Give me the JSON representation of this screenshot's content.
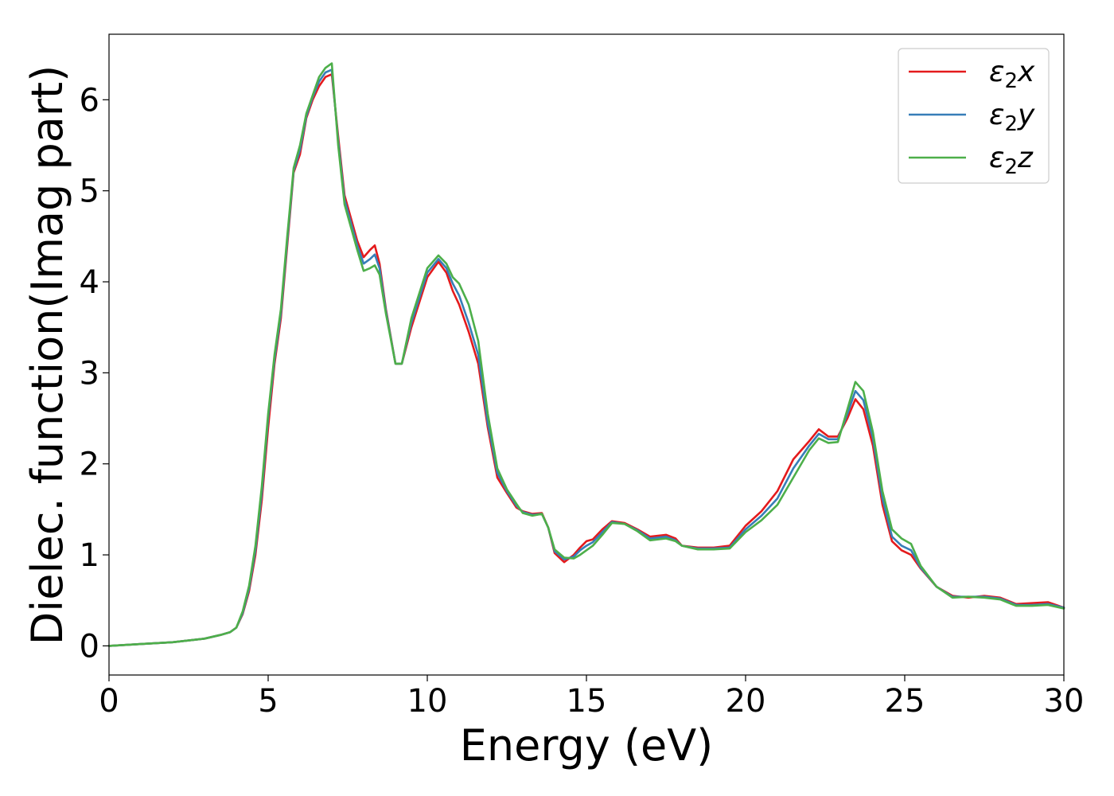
{
  "chart_data": {
    "type": "line",
    "xlabel": "Energy (eV)",
    "ylabel": "Dielec. function(Imag part)",
    "xlim": [
      0,
      30
    ],
    "ylim": [
      -0.32,
      6.72
    ],
    "xticks": [
      0,
      5,
      10,
      15,
      20,
      25,
      30
    ],
    "yticks": [
      0,
      1,
      2,
      3,
      4,
      5,
      6
    ],
    "grid": false,
    "legend_position": "top-right",
    "series": [
      {
        "name": "ε2x",
        "legend_base": "ε",
        "legend_sub": "2",
        "legend_suffix": "x",
        "color": "#e41a1c",
        "x": [
          0,
          1,
          2,
          3,
          3.5,
          3.8,
          4,
          4.2,
          4.4,
          4.6,
          4.8,
          5,
          5.2,
          5.4,
          5.6,
          5.8,
          6,
          6.2,
          6.4,
          6.6,
          6.8,
          7,
          7.2,
          7.4,
          7.6,
          7.8,
          8,
          8.2,
          8.35,
          8.5,
          8.7,
          9,
          9.2,
          9.5,
          10,
          10.35,
          10.6,
          10.8,
          11,
          11.3,
          11.6,
          11.9,
          12.2,
          12.5,
          12.8,
          13,
          13.3,
          13.6,
          13.8,
          14,
          14.3,
          14.6,
          14.8,
          15,
          15.2,
          15.5,
          15.8,
          16.2,
          16.6,
          17,
          17.5,
          17.8,
          18,
          18.5,
          19,
          19.5,
          20,
          20.5,
          21,
          21.5,
          22,
          22.3,
          22.6,
          22.9,
          23.2,
          23.45,
          23.7,
          24,
          24.3,
          24.6,
          24.9,
          25.2,
          25.5,
          26,
          26.5,
          27,
          27.5,
          28,
          28.5,
          29,
          29.5,
          30
        ],
        "y": [
          0,
          0.02,
          0.04,
          0.08,
          0.12,
          0.15,
          0.2,
          0.35,
          0.6,
          1.0,
          1.6,
          2.4,
          3.1,
          3.6,
          4.4,
          5.2,
          5.4,
          5.8,
          6.0,
          6.15,
          6.25,
          6.28,
          5.6,
          4.95,
          4.7,
          4.45,
          4.27,
          4.35,
          4.4,
          4.2,
          3.7,
          3.1,
          3.1,
          3.5,
          4.05,
          4.22,
          4.1,
          3.9,
          3.75,
          3.45,
          3.1,
          2.4,
          1.85,
          1.68,
          1.52,
          1.48,
          1.45,
          1.46,
          1.3,
          1.02,
          0.92,
          1.0,
          1.08,
          1.15,
          1.17,
          1.28,
          1.37,
          1.35,
          1.28,
          1.2,
          1.22,
          1.18,
          1.1,
          1.08,
          1.08,
          1.1,
          1.32,
          1.48,
          1.7,
          2.05,
          2.25,
          2.38,
          2.3,
          2.3,
          2.5,
          2.71,
          2.6,
          2.2,
          1.55,
          1.15,
          1.05,
          1.0,
          0.85,
          0.65,
          0.55,
          0.53,
          0.55,
          0.53,
          0.46,
          0.47,
          0.48,
          0.42
        ]
      },
      {
        "name": "ε2y",
        "legend_base": "ε",
        "legend_sub": "2",
        "legend_suffix": "y",
        "color": "#377eb8",
        "x": [
          0,
          1,
          2,
          3,
          3.5,
          3.8,
          4,
          4.2,
          4.4,
          4.6,
          4.8,
          5,
          5.2,
          5.4,
          5.6,
          5.8,
          6,
          6.2,
          6.4,
          6.6,
          6.8,
          7,
          7.2,
          7.4,
          7.6,
          7.8,
          8,
          8.2,
          8.35,
          8.5,
          8.7,
          9,
          9.2,
          9.5,
          10,
          10.35,
          10.6,
          10.8,
          11,
          11.3,
          11.6,
          11.9,
          12.2,
          12.5,
          12.8,
          13,
          13.3,
          13.6,
          13.8,
          14,
          14.3,
          14.6,
          14.8,
          15,
          15.2,
          15.5,
          15.8,
          16.2,
          16.6,
          17,
          17.5,
          17.8,
          18,
          18.5,
          19,
          19.5,
          20,
          20.5,
          21,
          21.5,
          22,
          22.3,
          22.6,
          22.9,
          23.2,
          23.45,
          23.7,
          24,
          24.3,
          24.6,
          24.9,
          25.2,
          25.5,
          26,
          26.5,
          27,
          27.5,
          28,
          28.5,
          29,
          29.5,
          30
        ],
        "y": [
          0,
          0.02,
          0.04,
          0.08,
          0.12,
          0.15,
          0.2,
          0.36,
          0.63,
          1.05,
          1.68,
          2.5,
          3.15,
          3.65,
          4.45,
          5.22,
          5.45,
          5.82,
          6.03,
          6.2,
          6.3,
          6.33,
          5.55,
          4.9,
          4.65,
          4.4,
          4.2,
          4.25,
          4.3,
          4.15,
          3.68,
          3.1,
          3.1,
          3.55,
          4.1,
          4.25,
          4.15,
          3.98,
          3.85,
          3.55,
          3.2,
          2.45,
          1.9,
          1.7,
          1.54,
          1.47,
          1.44,
          1.45,
          1.3,
          1.04,
          0.95,
          0.98,
          1.05,
          1.1,
          1.14,
          1.25,
          1.36,
          1.34,
          1.27,
          1.18,
          1.2,
          1.16,
          1.1,
          1.07,
          1.07,
          1.08,
          1.28,
          1.43,
          1.62,
          1.95,
          2.2,
          2.33,
          2.27,
          2.27,
          2.55,
          2.8,
          2.7,
          2.28,
          1.62,
          1.2,
          1.1,
          1.05,
          0.86,
          0.65,
          0.54,
          0.54,
          0.54,
          0.52,
          0.45,
          0.45,
          0.46,
          0.42
        ]
      },
      {
        "name": "ε2z",
        "legend_base": "ε",
        "legend_sub": "2",
        "legend_suffix": "z",
        "color": "#4daf4a",
        "x": [
          0,
          1,
          2,
          3,
          3.5,
          3.8,
          4,
          4.2,
          4.4,
          4.6,
          4.8,
          5,
          5.2,
          5.4,
          5.6,
          5.8,
          6,
          6.2,
          6.4,
          6.6,
          6.8,
          7,
          7.2,
          7.4,
          7.6,
          7.8,
          8,
          8.2,
          8.35,
          8.5,
          8.7,
          9,
          9.2,
          9.5,
          10,
          10.35,
          10.6,
          10.8,
          11,
          11.3,
          11.6,
          11.9,
          12.2,
          12.5,
          12.8,
          13,
          13.3,
          13.6,
          13.8,
          14,
          14.3,
          14.6,
          14.8,
          15,
          15.2,
          15.5,
          15.8,
          16.2,
          16.6,
          17,
          17.5,
          17.8,
          18,
          18.5,
          19,
          19.5,
          20,
          20.5,
          21,
          21.5,
          22,
          22.3,
          22.6,
          22.9,
          23.2,
          23.45,
          23.7,
          24,
          24.3,
          24.6,
          24.9,
          25.2,
          25.5,
          26,
          26.5,
          27,
          27.5,
          28,
          28.5,
          29,
          29.5,
          30
        ],
        "y": [
          0,
          0.02,
          0.04,
          0.08,
          0.12,
          0.15,
          0.2,
          0.38,
          0.66,
          1.1,
          1.75,
          2.55,
          3.2,
          3.7,
          4.5,
          5.25,
          5.5,
          5.85,
          6.05,
          6.25,
          6.35,
          6.4,
          5.5,
          4.85,
          4.6,
          4.35,
          4.12,
          4.15,
          4.18,
          4.08,
          3.65,
          3.1,
          3.1,
          3.6,
          4.15,
          4.29,
          4.2,
          4.05,
          3.98,
          3.75,
          3.35,
          2.55,
          1.95,
          1.72,
          1.56,
          1.46,
          1.43,
          1.45,
          1.3,
          1.06,
          0.97,
          0.96,
          1.0,
          1.05,
          1.1,
          1.22,
          1.35,
          1.34,
          1.26,
          1.16,
          1.18,
          1.15,
          1.1,
          1.06,
          1.06,
          1.07,
          1.25,
          1.38,
          1.55,
          1.85,
          2.15,
          2.28,
          2.23,
          2.24,
          2.6,
          2.9,
          2.8,
          2.35,
          1.7,
          1.28,
          1.18,
          1.12,
          0.88,
          0.65,
          0.53,
          0.54,
          0.53,
          0.51,
          0.44,
          0.44,
          0.45,
          0.41
        ]
      }
    ]
  }
}
